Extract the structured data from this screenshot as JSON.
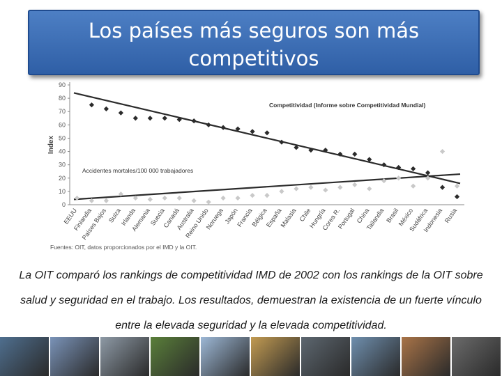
{
  "title": "Los países más seguros son más competitivos",
  "caption": "La OIT comparó los rankings de competitividad IMD de 2002 con los rankings de la OIT sobre salud y seguridad en el trabajo. Los resultados, demuestran la existencia de un fuerte vínculo entre la elevada seguridad y la elevada competitividad.",
  "chart_data": {
    "type": "scatter",
    "title": "",
    "xlabel": "",
    "ylabel": "Index",
    "ylim": [
      0,
      90
    ],
    "yticks": [
      0,
      10,
      20,
      30,
      40,
      50,
      60,
      70,
      80,
      90
    ],
    "grid": false,
    "categories": [
      "EEUU",
      "Finlandia",
      "Países Bajos",
      "Suiza",
      "Irlanda",
      "Alemania",
      "Suecia",
      "Canadá",
      "Australia",
      "Reino Unido",
      "Noruega",
      "Japón",
      "Francia",
      "Bélgica",
      "España",
      "Malasia",
      "Chile",
      "Hungría",
      "Corea R.",
      "Portugal",
      "China",
      "Tailandia",
      "Brasil",
      "México",
      "Sudáfrica",
      "Indonesia",
      "Rusia"
    ],
    "series": [
      {
        "name": "Competitividad (Informe sobre Competitividad Mundial)",
        "color": "#2b2b2b",
        "marker": "diamond",
        "values": [
          null,
          75,
          72,
          69,
          65,
          65,
          65,
          64,
          63,
          60,
          58,
          57,
          55,
          54,
          47,
          43,
          41,
          41,
          38,
          38,
          34,
          30,
          28,
          27,
          24,
          13,
          6
        ],
        "trend": [
          84,
          16
        ]
      },
      {
        "name": "Accidentes mortales/100 000 trabajadores",
        "color": "#c9c9c9",
        "marker": "diamond",
        "values": [
          5,
          3,
          3,
          8,
          5,
          4,
          5,
          5,
          3,
          2,
          5,
          5,
          7,
          7,
          10,
          12,
          13,
          11,
          13,
          15,
          12,
          18,
          20,
          14,
          20,
          40,
          14
        ],
        "trend": [
          4,
          23
        ]
      }
    ],
    "source": "Fuentes: OIT, datos proporcionados por el IMD y la OIT."
  },
  "photos": [
    {
      "name": "photo-steel-coil",
      "color": "#4f6f8f"
    },
    {
      "name": "photo-quality-sign",
      "color": "#7a93b8"
    },
    {
      "name": "photo-factory-floor",
      "color": "#8e9aa6"
    },
    {
      "name": "photo-workers-green",
      "color": "#5a7f3a"
    },
    {
      "name": "photo-construction-climbers",
      "color": "#9db8d6"
    },
    {
      "name": "photo-productivity",
      "color": "#c29b52"
    },
    {
      "name": "photo-business-team",
      "color": "#5d6770"
    },
    {
      "name": "photo-worker-helmet",
      "color": "#6f8fae"
    },
    {
      "name": "photo-workers-orange",
      "color": "#a97448"
    },
    {
      "name": "photo-industrial",
      "color": "#6b6b6b"
    }
  ]
}
